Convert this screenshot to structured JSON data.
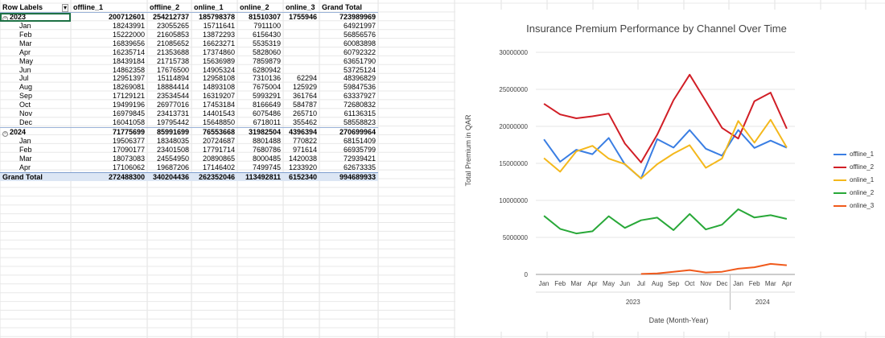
{
  "pivot": {
    "headers": [
      "Row Labels",
      "offline_1",
      "offline_2",
      "online_1",
      "online_2",
      "online_3",
      "Grand Total"
    ],
    "rows": [
      {
        "type": "year",
        "label": "2023",
        "values": [
          "200712601",
          "254212737",
          "185798378",
          "81510307",
          "1755946",
          "723989969"
        ]
      },
      {
        "type": "month",
        "label": "Jan",
        "values": [
          "18243991",
          "23055265",
          "15711641",
          "7911100",
          "",
          "64921997"
        ]
      },
      {
        "type": "month",
        "label": "Feb",
        "values": [
          "15222000",
          "21605853",
          "13872293",
          "6156430",
          "",
          "56856576"
        ]
      },
      {
        "type": "month",
        "label": "Mar",
        "values": [
          "16839656",
          "21085652",
          "16623271",
          "5535319",
          "",
          "60083898"
        ]
      },
      {
        "type": "month",
        "label": "Apr",
        "values": [
          "16235714",
          "21353688",
          "17374860",
          "5828060",
          "",
          "60792322"
        ]
      },
      {
        "type": "month",
        "label": "May",
        "values": [
          "18439184",
          "21715738",
          "15636989",
          "7859879",
          "",
          "63651790"
        ]
      },
      {
        "type": "month",
        "label": "Jun",
        "values": [
          "14862358",
          "17676500",
          "14905324",
          "6280942",
          "",
          "53725124"
        ]
      },
      {
        "type": "month",
        "label": "Jul",
        "values": [
          "12951397",
          "15114894",
          "12958108",
          "7310136",
          "62294",
          "48396829"
        ]
      },
      {
        "type": "month",
        "label": "Aug",
        "values": [
          "18269081",
          "18884414",
          "14893108",
          "7675004",
          "125929",
          "59847536"
        ]
      },
      {
        "type": "month",
        "label": "Sep",
        "values": [
          "17129121",
          "23534544",
          "16319207",
          "5993291",
          "361764",
          "63337927"
        ]
      },
      {
        "type": "month",
        "label": "Oct",
        "values": [
          "19499196",
          "26977016",
          "17453184",
          "8166649",
          "584787",
          "72680832"
        ]
      },
      {
        "type": "month",
        "label": "Nov",
        "values": [
          "16979845",
          "23413731",
          "14401543",
          "6075486",
          "265710",
          "61136315"
        ]
      },
      {
        "type": "month",
        "label": "Dec",
        "values": [
          "16041058",
          "19795442",
          "15648850",
          "6718011",
          "355462",
          "58558823"
        ]
      },
      {
        "type": "year",
        "label": "2024",
        "values": [
          "71775699",
          "85991699",
          "76553668",
          "31982504",
          "4396394",
          "270699964"
        ]
      },
      {
        "type": "month",
        "label": "Jan",
        "values": [
          "19506377",
          "18348035",
          "20724687",
          "8801488",
          "770822",
          "68151409"
        ]
      },
      {
        "type": "month",
        "label": "Feb",
        "values": [
          "17090177",
          "23401508",
          "17791714",
          "7680786",
          "971614",
          "66935799"
        ]
      },
      {
        "type": "month",
        "label": "Mar",
        "values": [
          "18073083",
          "24554950",
          "20890865",
          "8000485",
          "1420038",
          "72939421"
        ]
      },
      {
        "type": "month",
        "label": "Apr",
        "values": [
          "17106062",
          "19687206",
          "17146402",
          "7499745",
          "1233920",
          "62673335"
        ]
      },
      {
        "type": "total",
        "label": "Grand Total",
        "values": [
          "272488300",
          "340204436",
          "262352046",
          "113492811",
          "6152340",
          "994689933"
        ]
      }
    ]
  },
  "chart_data": {
    "type": "line",
    "title": "Insurance Premium Performance by Channel Over Time",
    "xlabel": "Date (Month-Year)",
    "ylabel": "Total Premium in QAR",
    "categories": [
      "Jan",
      "Feb",
      "Mar",
      "Apr",
      "May",
      "Jun",
      "Jul",
      "Aug",
      "Sep",
      "Oct",
      "Nov",
      "Dec",
      "Jan",
      "Feb",
      "Mar",
      "Apr"
    ],
    "year_groups": [
      {
        "label": "2023",
        "count": 12
      },
      {
        "label": "2024",
        "count": 4
      }
    ],
    "ylim": [
      0,
      30000000
    ],
    "yticks": [
      0,
      5000000,
      10000000,
      15000000,
      20000000,
      25000000,
      30000000
    ],
    "ytick_labels": [
      "0",
      "5000000",
      "10000000",
      "15000000",
      "20000000",
      "25000000",
      "30000000"
    ],
    "grid": true,
    "legend_position": "right",
    "series": [
      {
        "name": "offline_1",
        "color": "#3a7ee3",
        "values": [
          18243991,
          15222000,
          16839656,
          16235714,
          18439184,
          14862358,
          12951397,
          18269081,
          17129121,
          19499196,
          16979845,
          16041058,
          19506377,
          17090177,
          18073083,
          17106062
        ]
      },
      {
        "name": "offline_2",
        "color": "#d11e26",
        "values": [
          23055265,
          21605853,
          21085652,
          21353688,
          21715738,
          17676500,
          15114894,
          18884414,
          23534544,
          26977016,
          23413731,
          19795442,
          18348035,
          23401508,
          24554950,
          19687206
        ]
      },
      {
        "name": "online_1",
        "color": "#f4b81c",
        "values": [
          15711641,
          13872293,
          16623271,
          17374860,
          15636989,
          14905324,
          12958108,
          14893108,
          16319207,
          17453184,
          14401543,
          15648850,
          20724687,
          17791714,
          20890865,
          17146402
        ]
      },
      {
        "name": "online_2",
        "color": "#28a838",
        "values": [
          7911100,
          6156430,
          5535319,
          5828060,
          7859879,
          6280942,
          7310136,
          7675004,
          5993291,
          8166649,
          6075486,
          6718011,
          8801488,
          7680786,
          8000485,
          7499745
        ]
      },
      {
        "name": "online_3",
        "color": "#f05a1c",
        "values": [
          null,
          null,
          null,
          null,
          null,
          null,
          62294,
          125929,
          361764,
          584787,
          265710,
          355462,
          770822,
          971614,
          1420038,
          1233920
        ]
      }
    ]
  }
}
